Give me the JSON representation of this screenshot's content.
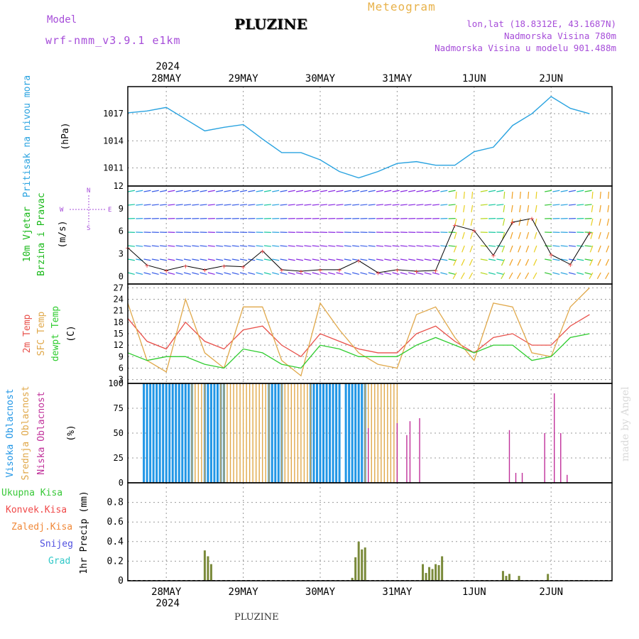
{
  "header": {
    "model_label": "Model",
    "model_name": "wrf-nmm_v3.9.1 e1km",
    "meteogram_label": "Meteogram",
    "station": "PLUZINE",
    "lonlat": "lon,lat (18.8312E, 43.1687N)",
    "elevation": "Nadmorska Visina 780m",
    "model_elevation": "Nadmorska Visina u modelu 901.488m"
  },
  "footer": {
    "station": "PLUZINE",
    "credit": "made by Angel"
  },
  "colors": {
    "pressure": "#2aa3e0",
    "temp2m": "#e8504a",
    "sfc": "#e0a84a",
    "dew": "#2ecc2e",
    "high_cloud": "#2196e6",
    "mid_cloud": "#e0a84a",
    "low_cloud": "#c0309a",
    "precip": "#7a8a3a",
    "total_precip": "#38c838",
    "convective": "#f04848",
    "freezing": "#f08838",
    "snow": "#5050e0",
    "hail": "#30c8c8",
    "wind_label": "#18b818"
  },
  "time_axis": {
    "year_top": "2024",
    "year_bottom": "2024",
    "days": [
      "28MAY",
      "29MAY",
      "30MAY",
      "31MAY",
      "1JUN",
      "2JUN"
    ]
  },
  "panels": {
    "pressure": {
      "label": "Pritisak na nivou mora",
      "unit": "(hPa)"
    },
    "wind": {
      "label1": "10m Vjetar",
      "label2": "Brzina i Pravac",
      "unit": "(m/s)",
      "compass": {
        "n": "N",
        "w": "W",
        "e": "E",
        "s": "S"
      }
    },
    "temperature": {
      "label_2m": "2m Temp",
      "label_sfc": "SFC Temp",
      "label_dew": "dewpt Temp",
      "unit": "(C)"
    },
    "cloud": {
      "label_high": "Visoka Oblacnost",
      "label_mid": "Srednja Oblacnost",
      "label_low": "Niska Oblacnost",
      "unit": "(%)"
    },
    "precip": {
      "legend": [
        "Ukupna Kisa",
        "Konvek.Kisa",
        "Zaledj.Kisa",
        "Snijeg",
        "Grad"
      ],
      "axis": "1hr Precip (mm)"
    }
  },
  "chart_data": [
    {
      "type": "line",
      "title": "",
      "ylabel": "(hPa)",
      "ylim": [
        1009,
        1020
      ],
      "yticks": [
        "1017",
        "1014",
        "1011"
      ],
      "x_hours_from_start": [
        0,
        6,
        12,
        18,
        24,
        30,
        36,
        42,
        48,
        54,
        60,
        66,
        72,
        78,
        84,
        90,
        96,
        102,
        108,
        114,
        120,
        126,
        132,
        138,
        144
      ],
      "series": [
        {
          "values": [
            1017.1,
            1017.3,
            1017.7,
            1016.4,
            1015.1,
            1015.5,
            1015.8,
            1014.2,
            1012.7,
            1012.7,
            1011.9,
            1010.6,
            1009.9,
            1010.6,
            1011.5,
            1011.7,
            1011.3,
            1011.3,
            1012.8,
            1013.3,
            1015.7,
            1017.0,
            1018.9,
            1017.6,
            1017.0
          ]
        }
      ]
    },
    {
      "type": "line",
      "title": "",
      "ylabel": "(m/s)",
      "ylim": [
        -1,
        12
      ],
      "yticks": [
        "12",
        "9",
        "6",
        "3",
        "0"
      ],
      "x_hours_from_start": [
        0,
        6,
        12,
        18,
        24,
        30,
        36,
        42,
        48,
        54,
        60,
        66,
        72,
        78,
        84,
        90,
        96,
        102,
        108,
        114,
        120,
        126,
        132,
        138,
        144
      ],
      "series": [
        {
          "values": [
            3.8,
            1.5,
            0.8,
            1.4,
            0.9,
            1.4,
            1.3,
            3.4,
            0.9,
            0.7,
            0.9,
            0.9,
            2.1,
            0.5,
            0.9,
            0.7,
            0.8,
            6.8,
            6.1,
            2.8,
            7.2,
            7.7,
            2.9,
            1.6,
            5.8
          ]
        }
      ]
    },
    {
      "type": "line",
      "title": "",
      "ylabel": "(C)",
      "ylim": [
        2,
        28
      ],
      "yticks": [
        "27",
        "24",
        "21",
        "18",
        "15",
        "12",
        "9",
        "6",
        "3"
      ],
      "x_hours_from_start": [
        0,
        6,
        12,
        18,
        24,
        30,
        36,
        42,
        48,
        54,
        60,
        66,
        72,
        78,
        84,
        90,
        96,
        102,
        108,
        114,
        120,
        126,
        132,
        138,
        144
      ],
      "series": [
        {
          "name": "2m Temp",
          "values": [
            19,
            13,
            11,
            18,
            13,
            11,
            16,
            17,
            12,
            9,
            15,
            13,
            11,
            10,
            10,
            15,
            17,
            13,
            10,
            14,
            15,
            12,
            12,
            17,
            20
          ]
        },
        {
          "name": "SFC Temp",
          "values": [
            23,
            8,
            5,
            24,
            10,
            6,
            22,
            22,
            8,
            4,
            23,
            16,
            10,
            7,
            6,
            20,
            22,
            14,
            8,
            23,
            22,
            10,
            9,
            22,
            27
          ]
        },
        {
          "name": "dewpt Temp",
          "values": [
            10,
            8,
            9,
            9,
            7,
            6,
            11,
            10,
            7,
            6,
            12,
            11,
            9,
            9,
            9,
            12,
            14,
            12,
            10,
            12,
            12,
            8,
            9,
            14,
            15
          ]
        }
      ]
    },
    {
      "type": "bar",
      "title": "",
      "ylabel": "(%)",
      "ylim": [
        0,
        100
      ],
      "yticks": [
        "100",
        "75",
        "50",
        "25",
        "0"
      ],
      "series": [
        {
          "name": "Visoka Oblacnost",
          "segments_hours": [
            [
              5,
              20
            ],
            [
              24,
              30
            ],
            [
              44,
              48
            ],
            [
              57,
              66
            ],
            [
              68,
              74
            ]
          ],
          "value": 100
        },
        {
          "name": "Srednja Oblacnost",
          "segments_hours": [
            [
              20,
              24
            ],
            [
              29,
              44
            ],
            [
              48,
              57
            ],
            [
              74,
              84
            ]
          ],
          "value": 100
        },
        {
          "name": "Niska Oblacnost",
          "spikes": [
            [
              75,
              55
            ],
            [
              84,
              60
            ],
            [
              87,
              48
            ],
            [
              88,
              62
            ],
            [
              91,
              65
            ],
            [
              119,
              53
            ],
            [
              121,
              10
            ],
            [
              123,
              10
            ],
            [
              130,
              50
            ],
            [
              133,
              90
            ],
            [
              135,
              50
            ],
            [
              137,
              8
            ]
          ]
        }
      ]
    },
    {
      "type": "bar",
      "title": "",
      "ylabel": "1hr Precip (mm)",
      "ylim": [
        0,
        1
      ],
      "yticks": [
        "0.8",
        "0.6",
        "0.4",
        "0.2",
        "0"
      ],
      "series": [
        {
          "name": "Ukupna Kisa",
          "hours": [
            24,
            25,
            26,
            70,
            71,
            72,
            73,
            74,
            92,
            93,
            94,
            95,
            96,
            97,
            98,
            117,
            118,
            119,
            122,
            131
          ],
          "values": [
            0.31,
            0.25,
            0.17,
            0.03,
            0.24,
            0.4,
            0.32,
            0.34,
            0.17,
            0.08,
            0.14,
            0.12,
            0.17,
            0.16,
            0.25,
            0.1,
            0.05,
            0.07,
            0.05,
            0.07
          ]
        }
      ]
    }
  ]
}
